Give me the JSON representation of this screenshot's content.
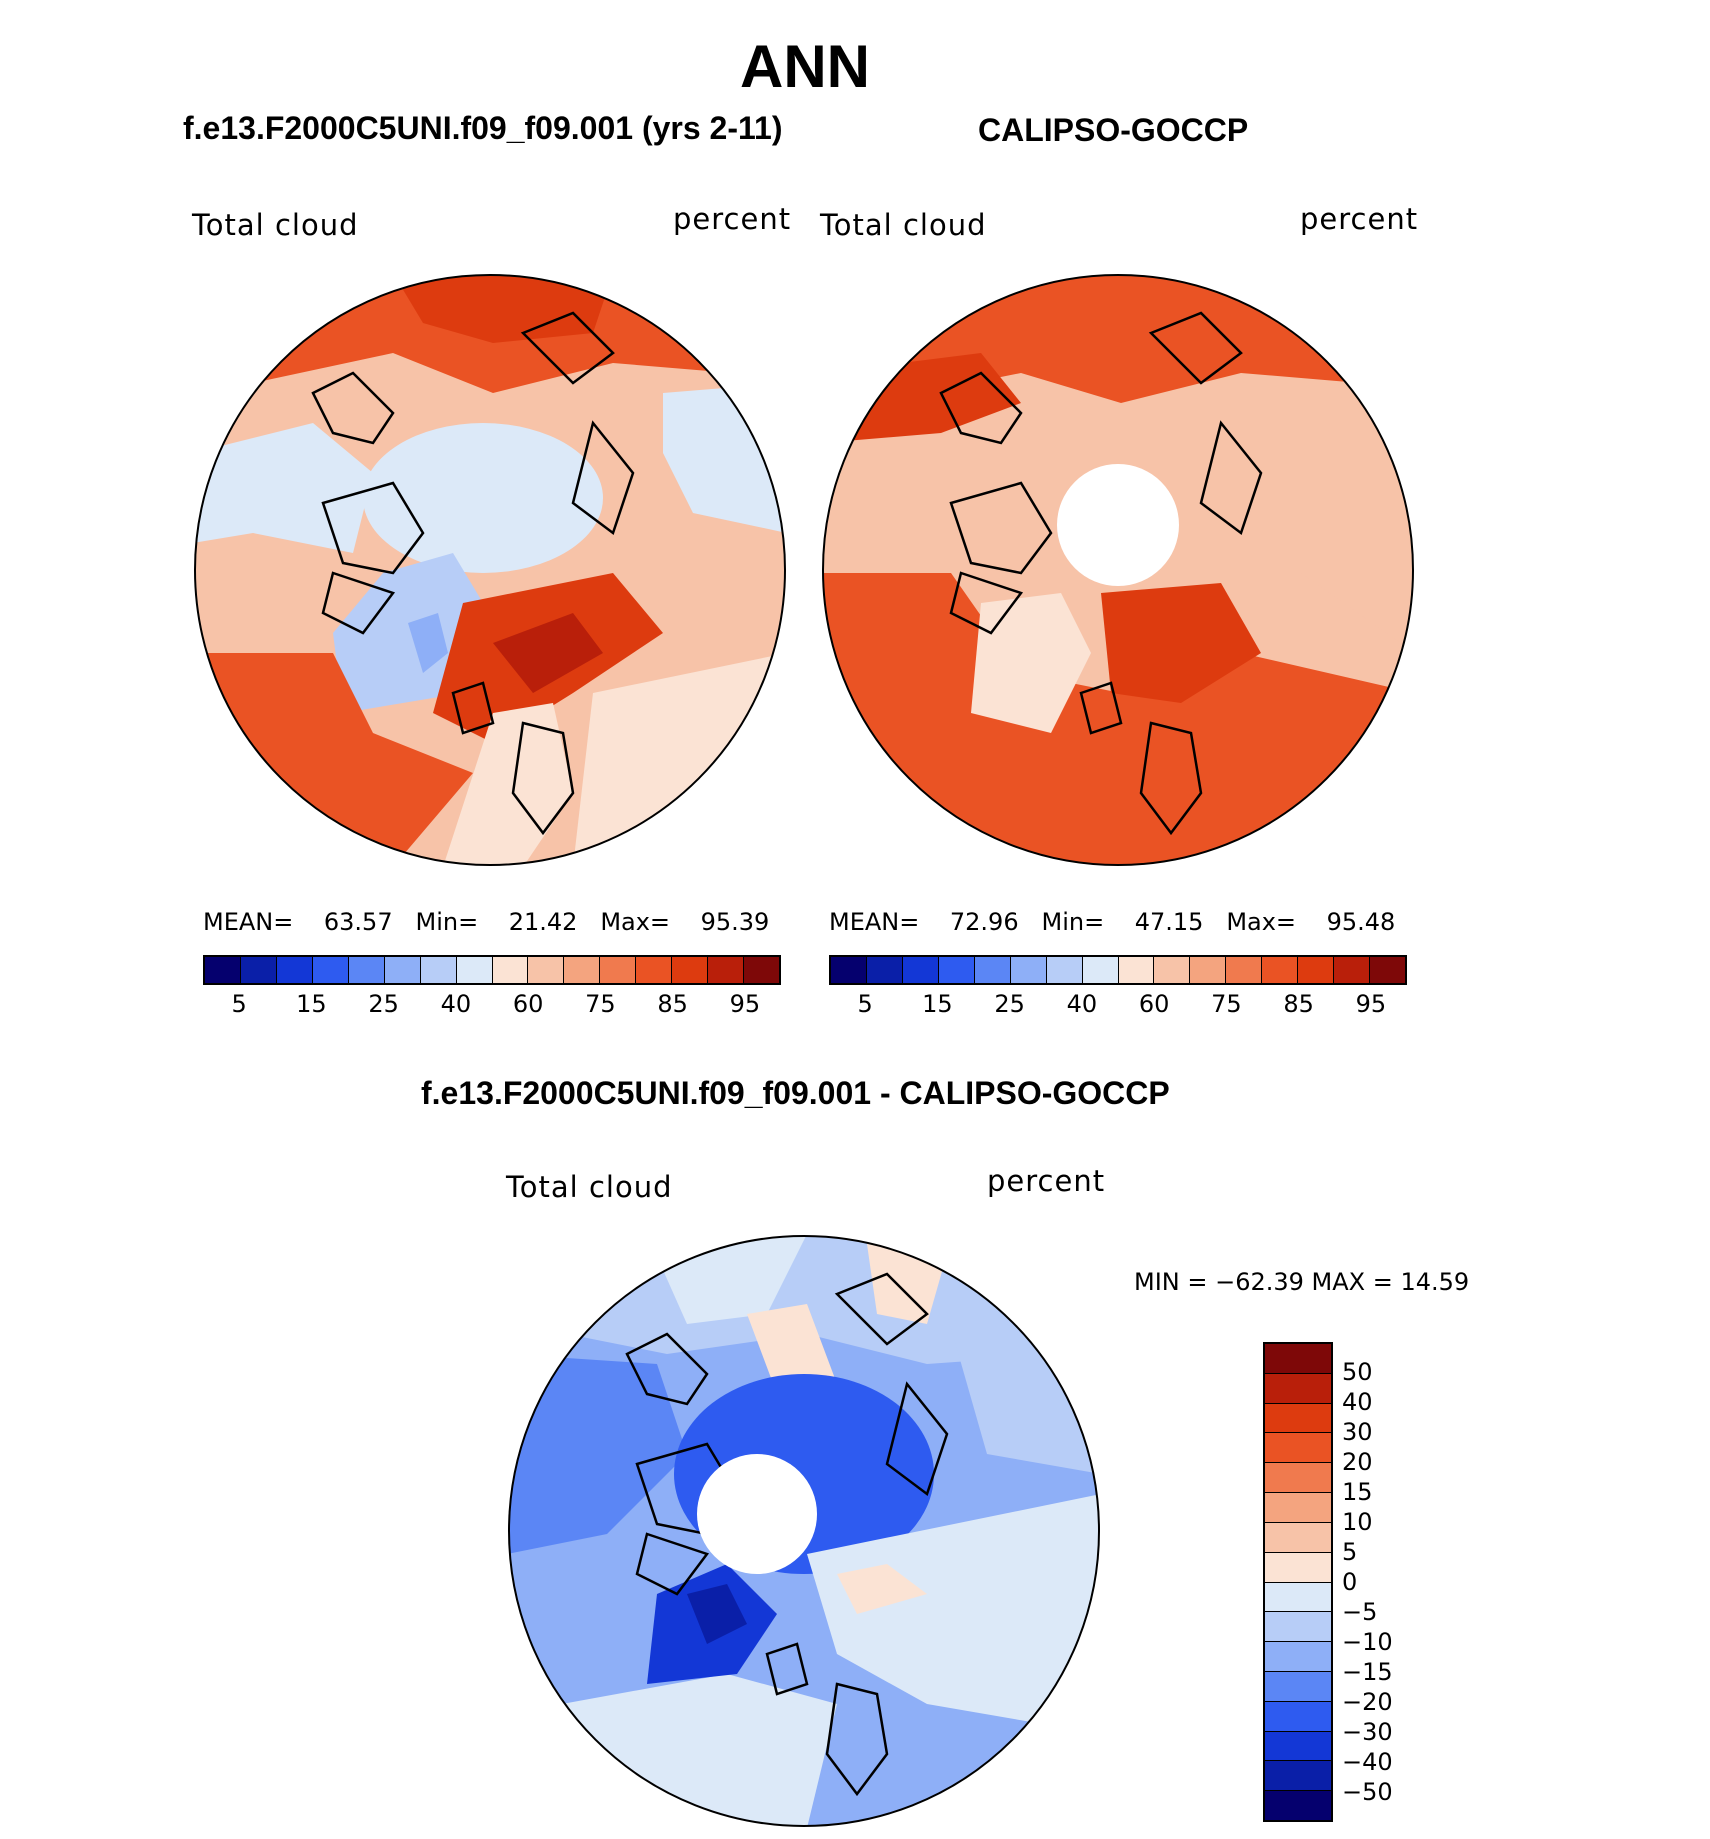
{
  "title": "ANN",
  "panels": {
    "model": {
      "subtitle": "f.e13.F2000C5UNI.f09_f09.001 (yrs 2-11)",
      "left_label": "Total cloud",
      "right_label": "percent",
      "stats": {
        "mean_label": "MEAN=",
        "mean": "63.57",
        "min_label": "Min=",
        "min": "21.42",
        "max_label": "Max=",
        "max": "95.39"
      }
    },
    "obs": {
      "subtitle": "CALIPSO-GOCCP",
      "left_label": "Total cloud",
      "right_label": "percent",
      "stats": {
        "mean_label": "MEAN=",
        "mean": "72.96",
        "min_label": "Min=",
        "min": "47.15",
        "max_label": "Max=",
        "max": "95.48"
      }
    },
    "diff": {
      "subtitle": "f.e13.F2000C5UNI.f09_f09.001 - CALIPSO-GOCCP",
      "left_label": "Total cloud",
      "right_label": "percent",
      "minmax": "MIN = −62.39 MAX =   14.59"
    }
  },
  "colorbar_horizontal": {
    "ticks": [
      "5",
      "15",
      "25",
      "40",
      "60",
      "75",
      "85",
      "95"
    ],
    "colors": [
      "#05006e",
      "#0a1fa8",
      "#1337d6",
      "#2e5bf0",
      "#5b86f5",
      "#8eaff7",
      "#b7cdf7",
      "#dce9f8",
      "#fbe3d4",
      "#f7c3a8",
      "#f4a47f",
      "#f07a4e",
      "#ea5324",
      "#dd3b0f",
      "#b91f0a",
      "#7e0808"
    ]
  },
  "colorbar_vertical": {
    "ticks": [
      "50",
      "40",
      "30",
      "20",
      "15",
      "10",
      "5",
      "0",
      "−5",
      "−10",
      "−15",
      "−20",
      "−30",
      "−40",
      "−50"
    ],
    "colors": [
      "#7e0808",
      "#b91f0a",
      "#dd3b0f",
      "#ea5324",
      "#f07a4e",
      "#f4a47f",
      "#f7c3a8",
      "#fbe3d4",
      "#dce9f8",
      "#b7cdf7",
      "#8eaff7",
      "#5b86f5",
      "#2e5bf0",
      "#1337d6",
      "#0a1fa8",
      "#05006e"
    ]
  },
  "map_colors": {
    "model_base": "#f7c3a8",
    "obs_base": "#f4a47f",
    "diff_base": "#8eaff7",
    "hole": "#ffffff",
    "coast": "#000000"
  }
}
